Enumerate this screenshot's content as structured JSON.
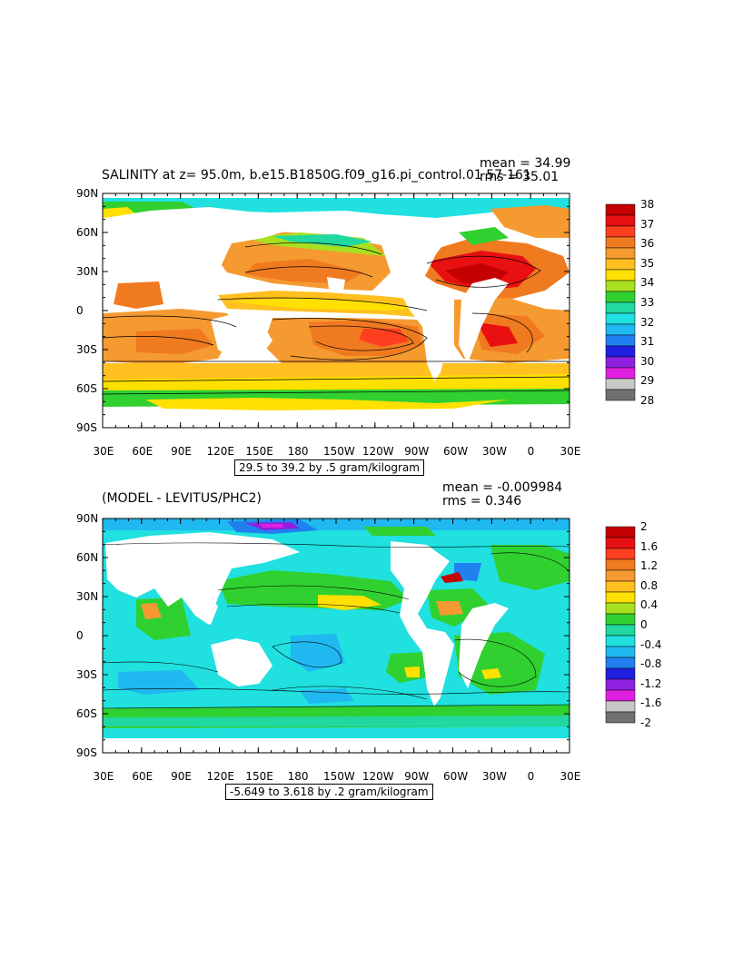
{
  "panel1": {
    "title": "SALINITY at z=  95.0m, b.e15.B1850G.f09_g16.pi_control.01 57-161",
    "mean": "mean = 34.99",
    "rms": "rms = 35.01",
    "range_label": "29.5 to 39.2 by .5 gram/kilogram",
    "colorbar": {
      "labels": [
        "38",
        "37",
        "36",
        "35",
        "34",
        "33",
        "32",
        "31",
        "30",
        "29",
        "28"
      ],
      "colors": [
        "#c40000",
        "#e81010",
        "#ff4020",
        "#f07a20",
        "#f59a30",
        "#ffc020",
        "#ffe000",
        "#a8e020",
        "#30d030",
        "#20d8a0",
        "#20e0e0",
        "#20b8f0",
        "#2080f0",
        "#2020e0",
        "#9020e0",
        "#e020e0",
        "#c8c8c8",
        "#707070"
      ]
    }
  },
  "panel2": {
    "title": "(MODEL - LEVITUS/PHC2)",
    "mean": "mean = -0.009984",
    "rms": "rms = 0.346",
    "range_label": "-5.649 to 3.618 by .2 gram/kilogram",
    "colorbar": {
      "labels": [
        "2",
        "1.6",
        "1.2",
        "0.8",
        "0.4",
        "0",
        "-0.4",
        "-0.8",
        "-1.2",
        "-1.6",
        "-2"
      ],
      "colors": [
        "#c40000",
        "#e81010",
        "#ff4020",
        "#f07a20",
        "#f59a30",
        "#ffc020",
        "#ffe000",
        "#a8e020",
        "#30d030",
        "#20d8a0",
        "#20e0e0",
        "#20b8f0",
        "#2080f0",
        "#2020e0",
        "#9020e0",
        "#e020e0",
        "#c8c8c8",
        "#707070"
      ]
    }
  },
  "axes": {
    "lat_labels": [
      "90N",
      "60N",
      "30N",
      "0",
      "30S",
      "60S",
      "90S"
    ],
    "lon_labels": [
      "30E",
      "60E",
      "90E",
      "120E",
      "150E",
      "180",
      "150W",
      "120W",
      "90W",
      "60W",
      "30W",
      "0",
      "30E"
    ]
  }
}
